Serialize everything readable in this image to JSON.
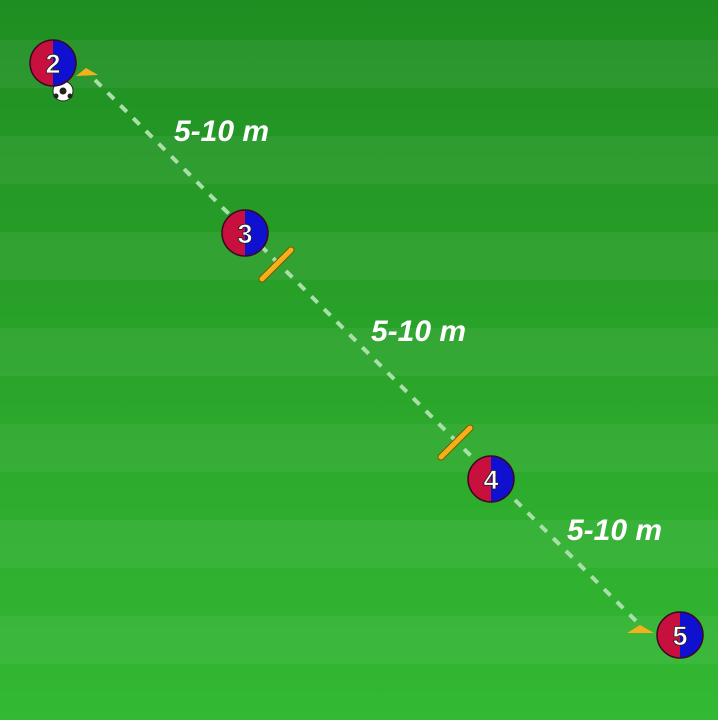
{
  "colors": {
    "team_left": "#c8103e",
    "team_right": "#1010d0",
    "cone": "#f5b01c",
    "pass_line": "#a8e0a8"
  },
  "players": [
    {
      "number": "2"
    },
    {
      "number": "3"
    },
    {
      "number": "4"
    },
    {
      "number": "5"
    }
  ],
  "distances": [
    {
      "label": "5-10 m"
    },
    {
      "label": "5-10 m"
    },
    {
      "label": "5-10 m"
    }
  ],
  "icons": [
    "soccer-ball-icon",
    "cone-icon",
    "pole-icon"
  ]
}
